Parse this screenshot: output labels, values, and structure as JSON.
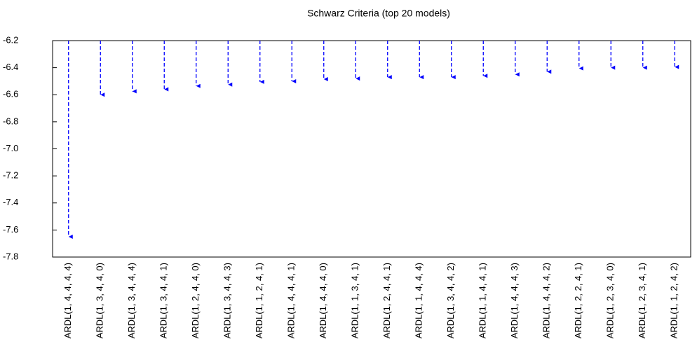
{
  "chart_data": {
    "type": "arrow",
    "title": "Schwarz Criteria (top 20 models)",
    "categories": [
      "ARDL(1, 4, 4, 4, 4)",
      "ARDL(1, 3, 4, 4, 0)",
      "ARDL(1, 3, 4, 4, 4)",
      "ARDL(1, 3, 4, 4, 1)",
      "ARDL(1, 2, 4, 4, 0)",
      "ARDL(1, 3, 4, 4, 3)",
      "ARDL(1, 1, 2, 4, 1)",
      "ARDL(1, 4, 4, 4, 1)",
      "ARDL(1, 4, 4, 4, 0)",
      "ARDL(1, 1, 3, 4, 1)",
      "ARDL(1, 2, 4, 4, 1)",
      "ARDL(1, 1, 4, 4, 4)",
      "ARDL(1, 3, 4, 4, 2)",
      "ARDL(1, 1, 4, 4, 1)",
      "ARDL(1, 4, 4, 4, 3)",
      "ARDL(1, 4, 4, 4, 2)",
      "ARDL(1, 2, 2, 4, 1)",
      "ARDL(1, 2, 3, 4, 0)",
      "ARDL(1, 2, 3, 4, 1)",
      "ARDL(1, 1, 2, 4, 2)"
    ],
    "values": [
      -7.65,
      -6.6,
      -6.575,
      -6.56,
      -6.535,
      -6.525,
      -6.505,
      -6.5,
      -6.485,
      -6.48,
      -6.47,
      -6.47,
      -6.47,
      -6.46,
      -6.45,
      -6.43,
      -6.405,
      -6.4,
      -6.4,
      -6.395
    ],
    "color": "#0000ff",
    "ylim": [
      -7.8,
      -6.2
    ],
    "yticks": [
      -6.2,
      -6.4,
      -6.6,
      -6.8,
      {
        "value": -7,
        "label": "-7.0"
      },
      -7.2,
      -7.4,
      -7.6,
      -7.8
    ]
  }
}
